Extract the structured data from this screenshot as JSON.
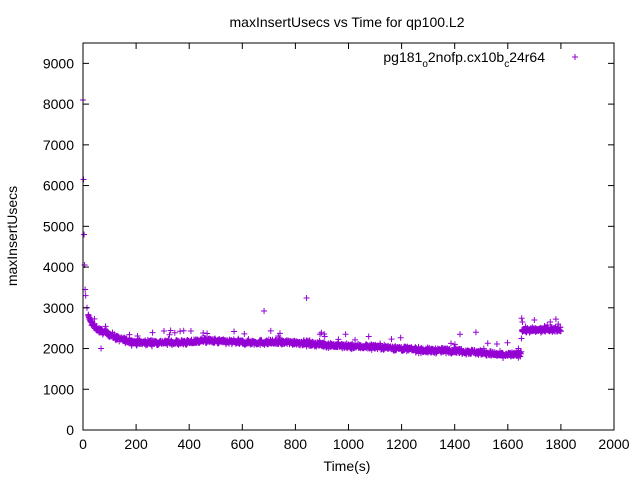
{
  "chart_data": {
    "type": "scatter",
    "title": "maxInsertUsecs vs Time for qp100.L2",
    "xlabel": "Time(s)",
    "ylabel": "maxInsertUsecs",
    "xlim": [
      0,
      2000
    ],
    "ylim": [
      0,
      9500
    ],
    "xticks": [
      0,
      200,
      400,
      600,
      800,
      1000,
      1200,
      1400,
      1600,
      1800,
      2000
    ],
    "yticks": [
      0,
      1000,
      2000,
      3000,
      4000,
      5000,
      6000,
      7000,
      8000,
      9000
    ],
    "grid": false,
    "legend_position": "top-right",
    "series": [
      {
        "name_parts": {
          "base": "pg181",
          "sub1": "o",
          "mid": "2nofp.cx10b",
          "sub2": "c",
          "tail": "24r64"
        },
        "color": "#9400d3",
        "marker": "plus",
        "anchors": [
          [
            0,
            8100
          ],
          [
            2,
            6150
          ],
          [
            4,
            4800
          ],
          [
            6,
            4050
          ],
          [
            8,
            3450
          ],
          [
            10,
            3300
          ],
          [
            15,
            3000
          ],
          [
            20,
            2800
          ],
          [
            30,
            2650
          ],
          [
            40,
            2550
          ],
          [
            60,
            2450
          ],
          [
            80,
            2400
          ],
          [
            100,
            2350
          ],
          [
            130,
            2250
          ],
          [
            160,
            2200
          ],
          [
            200,
            2150
          ],
          [
            300,
            2150
          ],
          [
            400,
            2150
          ],
          [
            450,
            2200
          ],
          [
            500,
            2180
          ],
          [
            600,
            2150
          ],
          [
            700,
            2150
          ],
          [
            800,
            2150
          ],
          [
            900,
            2100
          ],
          [
            1000,
            2050
          ],
          [
            1100,
            2050
          ],
          [
            1200,
            2000
          ],
          [
            1300,
            1950
          ],
          [
            1400,
            1950
          ],
          [
            1500,
            1900
          ],
          [
            1560,
            1850
          ],
          [
            1600,
            1850
          ],
          [
            1640,
            1850
          ],
          [
            1650,
            1900
          ],
          [
            1652,
            2450
          ],
          [
            1700,
            2450
          ],
          [
            1800,
            2480
          ]
        ],
        "noise": 55,
        "count": 1700,
        "outliers": [
          [
            68,
            2000
          ],
          [
            682,
            2920
          ],
          [
            842,
            3240
          ],
          [
            1420,
            2350
          ],
          [
            1480,
            2400
          ],
          [
            1640,
            2000
          ],
          [
            1655,
            2650
          ],
          [
            1700,
            2700
          ],
          [
            1760,
            2650
          ],
          [
            1790,
            2600
          ]
        ]
      }
    ]
  }
}
